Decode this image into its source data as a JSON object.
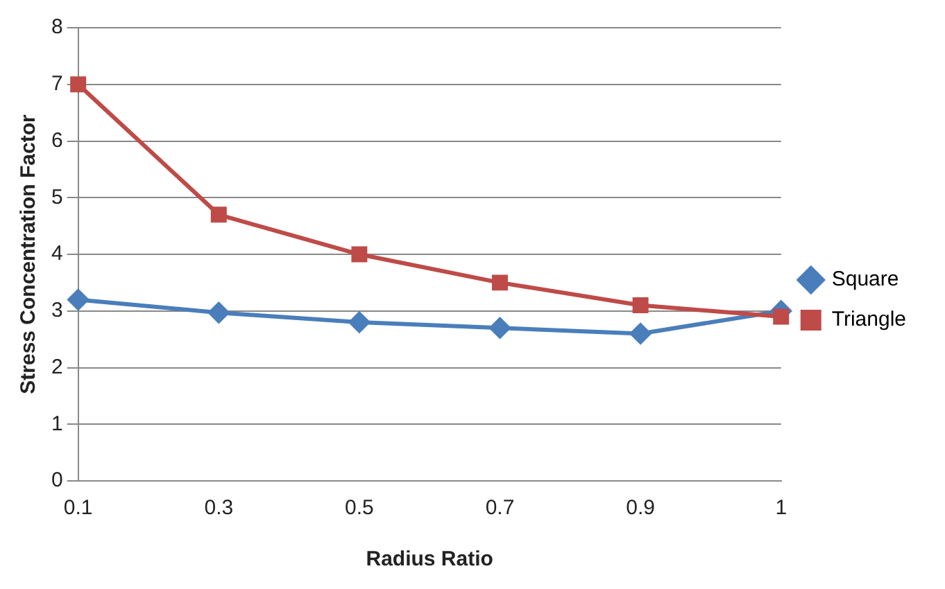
{
  "chart_data": {
    "type": "line",
    "xlabel": "Radius Ratio",
    "ylabel": "Stress Concentration Factor",
    "categories": [
      "0.1",
      "0.3",
      "0.5",
      "0.7",
      "0.9",
      "1"
    ],
    "series": [
      {
        "name": "Square",
        "color": "#4a7ebb",
        "marker": "diamond",
        "values": [
          3.2,
          2.97,
          2.8,
          2.7,
          2.6,
          3.0
        ]
      },
      {
        "name": "Triangle",
        "color": "#be4b48",
        "marker": "square",
        "values": [
          7.0,
          4.7,
          4.0,
          3.5,
          3.1,
          2.9
        ]
      }
    ],
    "ylim": [
      0,
      8
    ],
    "yticks": [
      0,
      1,
      2,
      3,
      4,
      5,
      6,
      7,
      8
    ],
    "grid": "y",
    "legend": "right",
    "line_style": "solid"
  }
}
